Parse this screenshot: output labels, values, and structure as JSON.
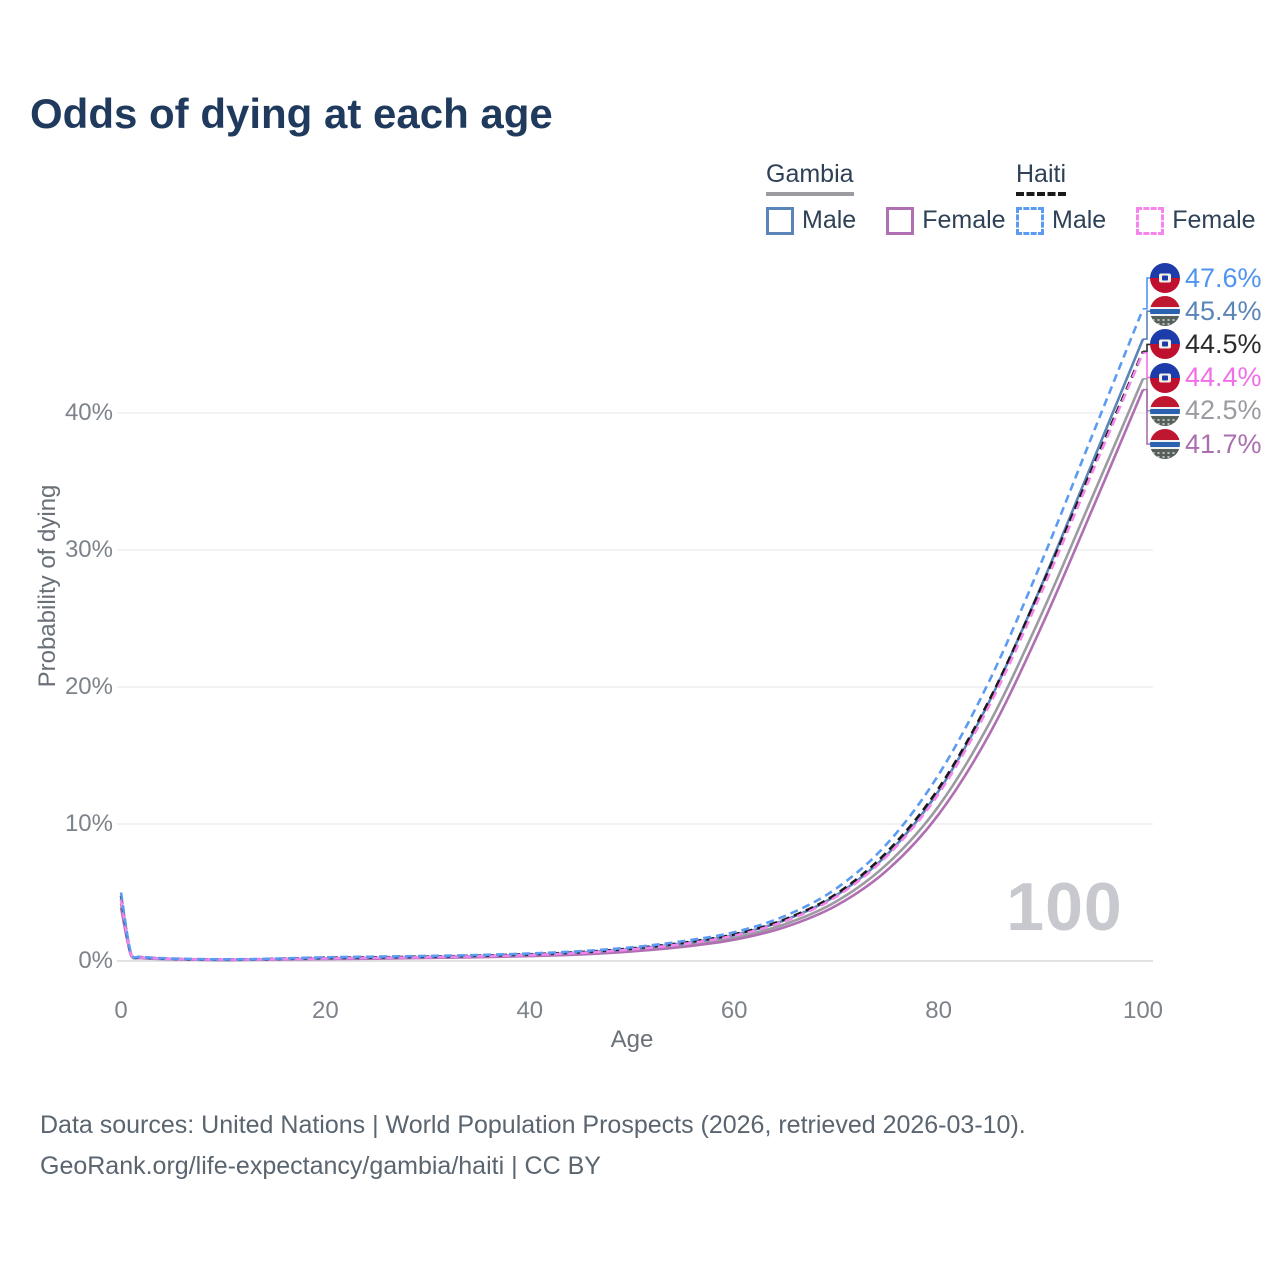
{
  "title": "Odds of dying at each age",
  "watermark": "100",
  "footer": {
    "line1": "Data sources: United Nations | World Population Prospects (2026, retrieved 2026-03-10).",
    "line2": "GeoRank.org/life-expectancy/gambia/haiti | CC BY"
  },
  "legend": {
    "groups": [
      {
        "label": "Gambia",
        "line_style": "solid",
        "underline_color": "#9b9ba1",
        "items": [
          {
            "label": "Male",
            "color": "#5b84b8"
          },
          {
            "label": "Female",
            "color": "#b06fb2"
          }
        ]
      },
      {
        "label": "Haiti",
        "line_style": "dashed",
        "underline_color": "#1a1a1a",
        "items": [
          {
            "label": "Male",
            "color": "#5c9bf2"
          },
          {
            "label": "Female",
            "color": "#f584ec"
          }
        ]
      }
    ]
  },
  "chart_data": {
    "type": "line",
    "title": "Odds of dying at each age",
    "xlabel": "Age",
    "ylabel": "Probability of dying",
    "xlim": [
      0,
      100
    ],
    "ylim": [
      0,
      50
    ],
    "grid": "horizontal",
    "xticks": {
      "values": [
        0,
        20,
        40,
        60,
        80,
        100
      ],
      "labels": [
        "0",
        "20",
        "40",
        "60",
        "80",
        "100"
      ]
    },
    "yticks": {
      "values": [
        0,
        10,
        20,
        30,
        40
      ],
      "labels": [
        "0%",
        "10%",
        "20%",
        "30%",
        "40%"
      ]
    },
    "x": [
      0,
      1,
      2,
      5,
      10,
      15,
      20,
      25,
      30,
      35,
      40,
      45,
      50,
      55,
      60,
      65,
      70,
      75,
      80,
      85,
      90,
      95,
      100
    ],
    "series": [
      {
        "name": "Gambia",
        "color": "#9b9ba1",
        "dashed": false,
        "flag": "gambia",
        "values": [
          4.2,
          0.39,
          0.23,
          0.13,
          0.08,
          0.11,
          0.16,
          0.2,
          0.25,
          0.31,
          0.4,
          0.54,
          0.78,
          1.14,
          1.7,
          2.7,
          4.35,
          7.1,
          11.3,
          17.4,
          25.2,
          33.8,
          42.5
        ]
      },
      {
        "name": "Gambia Female",
        "color": "#b06fb2",
        "dashed": false,
        "flag": "gambia",
        "values": [
          3.9,
          0.36,
          0.21,
          0.12,
          0.08,
          0.1,
          0.14,
          0.17,
          0.22,
          0.28,
          0.36,
          0.48,
          0.7,
          1.03,
          1.55,
          2.48,
          4.05,
          6.65,
          10.7,
          16.6,
          24.3,
          32.9,
          41.7
        ]
      },
      {
        "name": "Gambia Male",
        "color": "#5b84b8",
        "dashed": false,
        "flag": "gambia",
        "values": [
          4.5,
          0.42,
          0.25,
          0.14,
          0.09,
          0.13,
          0.19,
          0.23,
          0.29,
          0.36,
          0.46,
          0.62,
          0.88,
          1.28,
          1.9,
          3.0,
          4.8,
          7.8,
          12.4,
          19.0,
          27.3,
          36.3,
          45.4
        ]
      },
      {
        "name": "Haiti",
        "color": "#1a1a1a",
        "dashed": true,
        "flag": "haiti",
        "values": [
          4.75,
          0.46,
          0.28,
          0.16,
          0.11,
          0.15,
          0.23,
          0.27,
          0.32,
          0.39,
          0.49,
          0.65,
          0.92,
          1.33,
          1.95,
          3.05,
          4.9,
          8.0,
          12.6,
          19.1,
          27.2,
          35.9,
          44.5
        ]
      },
      {
        "name": "Haiti Female",
        "color": "#f584ec",
        "dashed": true,
        "flag": "haiti",
        "values": [
          4.5,
          0.43,
          0.26,
          0.15,
          0.1,
          0.13,
          0.19,
          0.23,
          0.28,
          0.35,
          0.44,
          0.59,
          0.85,
          1.24,
          1.85,
          2.92,
          4.7,
          7.7,
          12.2,
          18.7,
          26.8,
          35.6,
          44.4
        ]
      },
      {
        "name": "Haiti Male",
        "color": "#5c9bf2",
        "dashed": true,
        "flag": "haiti",
        "values": [
          5.0,
          0.5,
          0.3,
          0.18,
          0.12,
          0.17,
          0.27,
          0.32,
          0.37,
          0.44,
          0.55,
          0.72,
          1.0,
          1.45,
          2.1,
          3.3,
          5.3,
          8.6,
          13.6,
          20.5,
          29.0,
          38.3,
          47.6
        ]
      }
    ],
    "end_labels": [
      {
        "text": "47.6%",
        "series": "Haiti Male",
        "value": 47.6,
        "color": "#4f94f0",
        "flag": "haiti"
      },
      {
        "text": "45.4%",
        "series": "Gambia Male",
        "value": 45.4,
        "color": "#5b84b8",
        "flag": "gambia"
      },
      {
        "text": "44.5%",
        "series": "Haiti",
        "value": 44.5,
        "color": "#2b2b2b",
        "flag": "haiti"
      },
      {
        "text": "44.4%",
        "series": "Haiti Female",
        "value": 44.4,
        "color": "#f06fe8",
        "flag": "haiti"
      },
      {
        "text": "42.5%",
        "series": "Gambia",
        "value": 42.5,
        "color": "#9b9ba1",
        "flag": "gambia"
      },
      {
        "text": "41.7%",
        "series": "Gambia Female",
        "value": 41.7,
        "color": "#aa6fae",
        "flag": "gambia"
      }
    ],
    "legend_position": "top-right"
  }
}
